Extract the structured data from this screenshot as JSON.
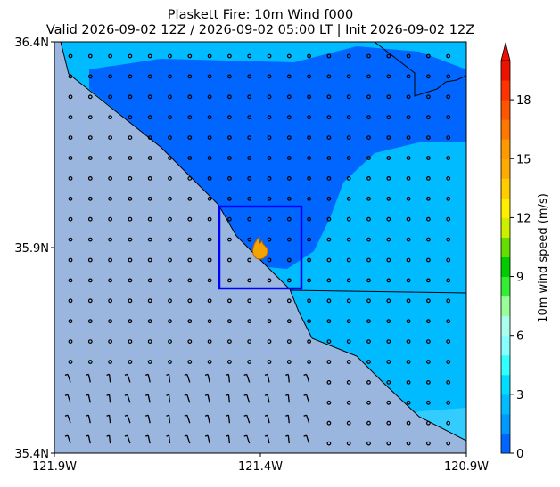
{
  "chart_data": {
    "type": "map",
    "title": "Plaskett Fire: 10m Wind f000",
    "subtitle": "Valid 2026-09-02 12Z / 2026-09-02 05:00 LT | Init 2026-09-02 12Z",
    "xlim": [
      -121.9,
      -120.9
    ],
    "ylim": [
      35.4,
      36.4
    ],
    "xticks": [
      {
        "value": -121.9,
        "label": "121.9W"
      },
      {
        "value": -121.4,
        "label": "121.4W"
      },
      {
        "value": -120.9,
        "label": "120.9W"
      }
    ],
    "yticks": [
      {
        "value": 35.4,
        "label": "35.4N"
      },
      {
        "value": 35.9,
        "label": "35.9N"
      },
      {
        "value": 36.4,
        "label": "36.4N"
      }
    ],
    "colorbar": {
      "label": "10m wind speed (m/s)",
      "lim": [
        0,
        20
      ],
      "ticks": [
        0,
        3,
        6,
        9,
        12,
        15,
        18
      ],
      "colors": [
        "#0066ff",
        "#0099ff",
        "#00bbff",
        "#00ddff",
        "#33ffff",
        "#88ffff",
        "#aaffee",
        "#99ff99",
        "#33ee33",
        "#00cc00",
        "#66dd00",
        "#ccee00",
        "#ffee00",
        "#ffcc00",
        "#ffaa00",
        "#ff9900",
        "#ff7700",
        "#ff5500",
        "#ff3300",
        "#ee1100"
      ]
    }
  }
}
